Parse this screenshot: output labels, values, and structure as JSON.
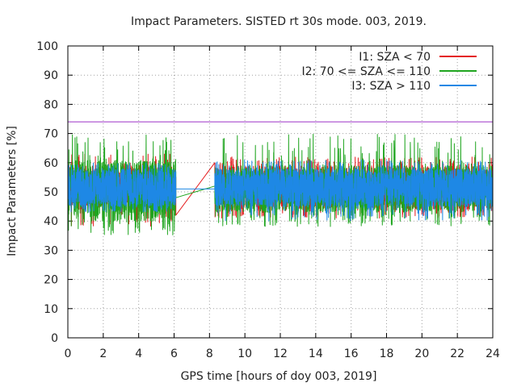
{
  "chart_data": {
    "type": "line",
    "title": "Impact Parameters. SISTED rt 30s mode. 003, 2019.",
    "xlabel": "GPS time [hours of doy 003, 2019]",
    "ylabel": "Impact Parameters [%]",
    "xlim": [
      0,
      24
    ],
    "ylim": [
      0,
      100
    ],
    "x_ticks": [
      0,
      2,
      4,
      6,
      8,
      10,
      12,
      14,
      16,
      18,
      20,
      22,
      24
    ],
    "y_ticks": [
      0,
      10,
      20,
      30,
      40,
      50,
      60,
      70,
      80,
      90,
      100
    ],
    "grid": true,
    "legend_position": "top-right",
    "reference_line": {
      "y": 74,
      "color": "#9b30c8"
    },
    "series": [
      {
        "name": "I1: SZA < 70",
        "color": "#e41a1c",
        "segments": [
          {
            "x_start": 0.0,
            "x_end": 6.1,
            "center": 51,
            "typical_low": 44,
            "typical_high": 59,
            "min": 38,
            "max": 63
          },
          {
            "x_start": 6.1,
            "x_end": 8.3,
            "center": 51,
            "transition_from": 42,
            "transition_to": 60
          },
          {
            "x_start": 8.3,
            "x_end": 24.0,
            "center": 51,
            "typical_low": 44,
            "typical_high": 59,
            "min": 41,
            "max": 62
          }
        ]
      },
      {
        "name": "I2: 70 <= SZA <= 110",
        "color": "#1fa51f",
        "segments": [
          {
            "x_start": 0.0,
            "x_end": 6.1,
            "center": 50,
            "typical_low": 40,
            "typical_high": 61,
            "min": 35,
            "max": 70
          },
          {
            "x_start": 6.1,
            "x_end": 8.3,
            "center": 50,
            "transition_from": 48,
            "transition_to": 52
          },
          {
            "x_start": 8.3,
            "x_end": 24.0,
            "center": 50,
            "typical_low": 43,
            "typical_high": 59,
            "min": 38,
            "max": 70
          }
        ]
      },
      {
        "name": "I3: SZA > 110",
        "color": "#1e88e5",
        "segments": [
          {
            "x_start": 0.0,
            "x_end": 6.1,
            "center": 51,
            "typical_low": 45,
            "typical_high": 58,
            "min": 43,
            "max": 60
          },
          {
            "x_start": 6.1,
            "x_end": 8.3,
            "center": 51,
            "transition_from": 51,
            "transition_to": 51
          },
          {
            "x_start": 8.3,
            "x_end": 24.0,
            "center": 51,
            "typical_low": 45,
            "typical_high": 58,
            "min": 40,
            "max": 61
          }
        ]
      }
    ]
  }
}
